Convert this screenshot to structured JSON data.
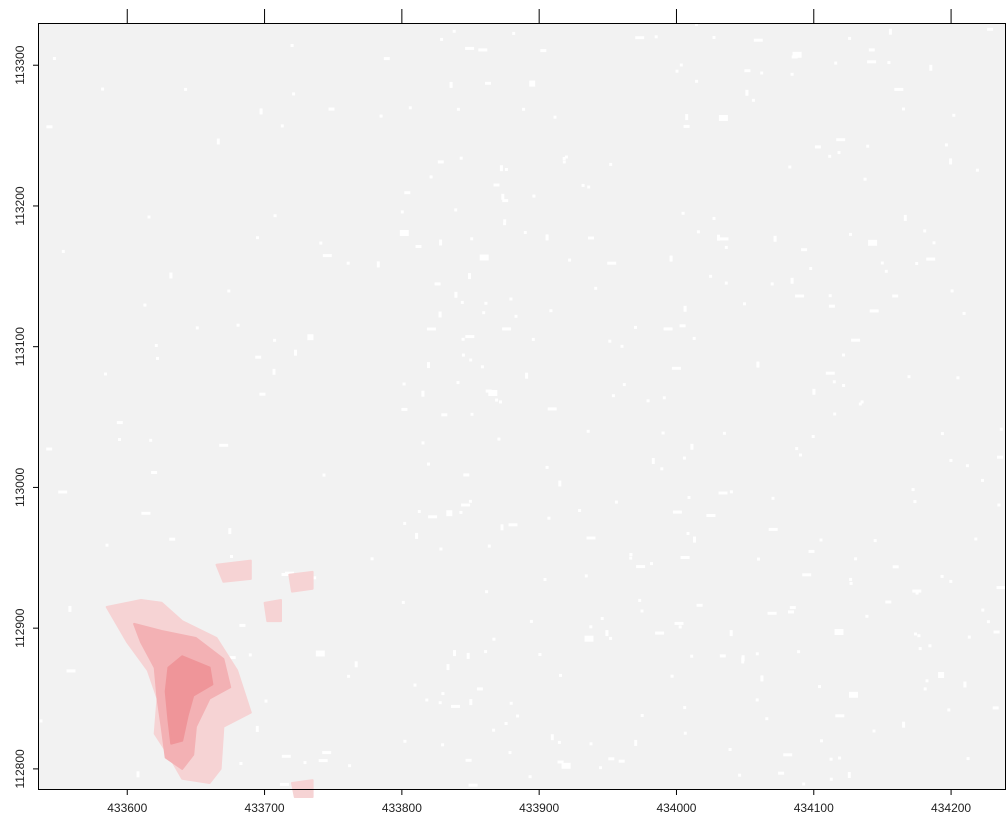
{
  "map": {
    "type": "raster",
    "colors": {
      "background": "#f2f2f2",
      "nodata_speckle": "#ffffff",
      "highlight_light": "#f6d3d4",
      "highlight_mid": "#f3b1b4",
      "highlight_dark": "#ef9599",
      "frame": "#000000"
    },
    "x_axis": {
      "ticks": [
        433600,
        433700,
        433800,
        433900,
        434000,
        434100,
        434200
      ],
      "tick_labels": [
        "433600",
        "433700",
        "433800",
        "433900",
        "434000",
        "434100",
        "434200"
      ],
      "range": [
        433535,
        434240
      ]
    },
    "y_axis": {
      "ticks": [
        113300,
        113200,
        113100,
        113000,
        112900,
        112800
      ],
      "tick_labels": [
        "113300",
        "113200",
        "113100",
        "113000",
        "112900",
        "112800"
      ],
      "range": [
        112785,
        113330
      ]
    },
    "hotspots": [
      {
        "intensity": "light",
        "polygon": [
          [
            433585,
            112915
          ],
          [
            433610,
            112920
          ],
          [
            433625,
            112918
          ],
          [
            433640,
            112905
          ],
          [
            433665,
            112893
          ],
          [
            433680,
            112870
          ],
          [
            433690,
            112840
          ],
          [
            433670,
            112830
          ],
          [
            433668,
            112800
          ],
          [
            433660,
            112790
          ],
          [
            433640,
            112793
          ],
          [
            433630,
            112810
          ],
          [
            433620,
            112825
          ],
          [
            433622,
            112850
          ],
          [
            433615,
            112870
          ],
          [
            433600,
            112890
          ]
        ]
      },
      {
        "intensity": "mid",
        "polygon": [
          [
            433605,
            112903
          ],
          [
            433625,
            112898
          ],
          [
            433650,
            112893
          ],
          [
            433670,
            112878
          ],
          [
            433675,
            112858
          ],
          [
            433660,
            112850
          ],
          [
            433650,
            112830
          ],
          [
            433648,
            112810
          ],
          [
            433640,
            112800
          ],
          [
            433628,
            112808
          ],
          [
            433625,
            112830
          ],
          [
            433622,
            112850
          ],
          [
            433620,
            112872
          ],
          [
            433610,
            112890
          ]
        ]
      },
      {
        "intensity": "dark",
        "polygon": [
          [
            433640,
            112880
          ],
          [
            433660,
            112872
          ],
          [
            433662,
            112860
          ],
          [
            433648,
            112852
          ],
          [
            433644,
            112838
          ],
          [
            433640,
            112820
          ],
          [
            433632,
            112818
          ],
          [
            433630,
            112835
          ],
          [
            433628,
            112855
          ],
          [
            433630,
            112872
          ]
        ]
      },
      {
        "intensity": "light",
        "polygon": [
          [
            433665,
            112945
          ],
          [
            433690,
            112948
          ],
          [
            433690,
            112935
          ],
          [
            433670,
            112933
          ]
        ]
      },
      {
        "intensity": "light",
        "polygon": [
          [
            433700,
            112918
          ],
          [
            433712,
            112920
          ],
          [
            433712,
            112905
          ],
          [
            433702,
            112905
          ]
        ]
      },
      {
        "intensity": "light",
        "polygon": [
          [
            433718,
            112938
          ],
          [
            433735,
            112940
          ],
          [
            433735,
            112928
          ],
          [
            433720,
            112926
          ]
        ]
      },
      {
        "intensity": "light",
        "polygon": [
          [
            433720,
            112790
          ],
          [
            433735,
            112792
          ],
          [
            433735,
            112780
          ],
          [
            433722,
            112780
          ]
        ]
      }
    ]
  }
}
